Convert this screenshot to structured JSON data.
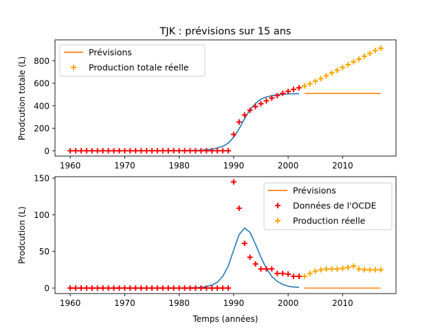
{
  "figure_title": "TJK : prévisions sur 15 ans",
  "colors": {
    "blue": "#1f77b4",
    "orange": "#ff7f0e",
    "red": "#ff0000",
    "gold": "#ffa500"
  },
  "chart_data": [
    {
      "type": "line",
      "title": "TJK : prévisions sur 15 ans",
      "xlabel": "",
      "ylabel": "Prodcution totale (L)",
      "xlim": [
        1957.2,
        2019.8
      ],
      "ylim": [
        -47,
        985
      ],
      "xticks": [
        1960,
        1970,
        1980,
        1990,
        2000,
        2010
      ],
      "yticks": [
        0,
        200,
        400,
        600,
        800
      ],
      "grid": false,
      "legend_position": "upper-left",
      "legend": [
        {
          "label": "Prévisions",
          "kind": "line",
          "color": "#ff7f0e"
        },
        {
          "label": "Production totale réelle",
          "kind": "plus",
          "color": "#ffa500"
        }
      ],
      "series": [
        {
          "id": "fit_curve",
          "type": "line",
          "color": "#1f77b4",
          "x": [
            1960,
            1970,
            1980,
            1984,
            1986,
            1987,
            1988,
            1989,
            1990,
            1991,
            1992,
            1993,
            1994,
            1995,
            1996,
            1997,
            1998,
            1999,
            2000,
            2002
          ],
          "y": [
            0,
            0,
            1,
            5,
            14,
            24,
            40,
            68,
            120,
            195,
            285,
            365,
            420,
            458,
            478,
            490,
            498,
            502,
            505,
            507
          ]
        },
        {
          "name": "Prévisions",
          "type": "line",
          "color": "#ff7f0e",
          "x": [
            2003,
            2017
          ],
          "y": [
            510,
            510
          ]
        },
        {
          "id": "historical_marks",
          "type": "scatter",
          "marker": "plus",
          "color": "#ff0000",
          "x": [
            1960,
            1961,
            1962,
            1963,
            1964,
            1965,
            1966,
            1967,
            1968,
            1969,
            1970,
            1971,
            1972,
            1973,
            1974,
            1975,
            1976,
            1977,
            1978,
            1979,
            1980,
            1981,
            1982,
            1983,
            1984,
            1985,
            1986,
            1987,
            1988,
            1989,
            1990,
            1991,
            1992,
            1993,
            1994,
            1995,
            1996,
            1997,
            1998,
            1999,
            2000,
            2001,
            2002
          ],
          "y": [
            0,
            0,
            0,
            0,
            0,
            0,
            0,
            0,
            0,
            0,
            0,
            0,
            0,
            0,
            0,
            0,
            0,
            0,
            0,
            0,
            0,
            0,
            0,
            0,
            0,
            0,
            0,
            0,
            0,
            0,
            145,
            255,
            318,
            360,
            392,
            418,
            444,
            468,
            490,
            510,
            528,
            545,
            560
          ]
        },
        {
          "name": "Production totale réelle",
          "type": "scatter",
          "marker": "plus",
          "color": "#ffa500",
          "x": [
            2003,
            2004,
            2005,
            2006,
            2007,
            2008,
            2009,
            2010,
            2011,
            2012,
            2013,
            2014,
            2015,
            2016,
            2017
          ],
          "y": [
            575,
            595,
            618,
            640,
            665,
            690,
            715,
            740,
            765,
            790,
            815,
            840,
            865,
            890,
            910
          ]
        }
      ]
    },
    {
      "type": "line",
      "title": "",
      "xlabel": "Temps (années)",
      "ylabel": "Prodcution (L)",
      "xlim": [
        1957.2,
        2019.8
      ],
      "ylim": [
        -7.5,
        152
      ],
      "xticks": [
        1960,
        1970,
        1980,
        1990,
        2000,
        2010
      ],
      "yticks": [
        0,
        50,
        100,
        150
      ],
      "grid": false,
      "legend_position": "upper-right",
      "legend": [
        {
          "label": "Prévisions",
          "kind": "line",
          "color": "#ff7f0e"
        },
        {
          "label": "Données de l'OCDE",
          "kind": "plus",
          "color": "#ff0000"
        },
        {
          "label": "Production réelle",
          "kind": "plus",
          "color": "#ffa500"
        }
      ],
      "series": [
        {
          "id": "fit_curve",
          "type": "line",
          "color": "#1f77b4",
          "x": [
            1960,
            1970,
            1980,
            1982,
            1984,
            1985,
            1986,
            1987,
            1988,
            1989,
            1990,
            1991,
            1992,
            1993,
            1994,
            1995,
            1996,
            1997,
            1998,
            1999,
            2000,
            2001,
            2002
          ],
          "y": [
            0,
            0,
            0,
            0.5,
            1,
            2,
            4,
            8,
            16,
            30,
            52,
            73,
            82,
            76,
            60,
            42,
            27,
            16,
            9,
            5,
            2.5,
            1.5,
            1
          ]
        },
        {
          "name": "Prévisions",
          "type": "line",
          "color": "#ff7f0e",
          "x": [
            2003,
            2017
          ],
          "y": [
            0,
            0
          ]
        },
        {
          "name": "Données de l'OCDE",
          "type": "scatter",
          "marker": "plus",
          "color": "#ff0000",
          "x": [
            1960,
            1961,
            1962,
            1963,
            1964,
            1965,
            1966,
            1967,
            1968,
            1969,
            1970,
            1971,
            1972,
            1973,
            1974,
            1975,
            1976,
            1977,
            1978,
            1979,
            1980,
            1981,
            1982,
            1983,
            1984,
            1985,
            1986,
            1987,
            1988,
            1989,
            1990,
            1991,
            1992,
            1993,
            1994,
            1995,
            1996,
            1997,
            1998,
            1999,
            2000,
            2001,
            2002
          ],
          "y": [
            0,
            0,
            0,
            0,
            0,
            0,
            0,
            0,
            0,
            0,
            0,
            0,
            0,
            0,
            0,
            0,
            0,
            0,
            0,
            0,
            0,
            0,
            0,
            0,
            0,
            0,
            0,
            0,
            0,
            0,
            145,
            109,
            61,
            42,
            33,
            26,
            26,
            26,
            20,
            20,
            19,
            16,
            16
          ]
        },
        {
          "name": "Production réelle",
          "type": "scatter",
          "marker": "plus",
          "color": "#ffa500",
          "x": [
            2003,
            2004,
            2005,
            2006,
            2007,
            2008,
            2009,
            2010,
            2011,
            2012,
            2013,
            2014,
            2015,
            2016,
            2017
          ],
          "y": [
            16,
            20,
            23,
            25,
            26,
            26,
            26,
            27,
            28,
            30,
            26,
            25,
            25,
            25,
            25
          ]
        }
      ]
    }
  ]
}
